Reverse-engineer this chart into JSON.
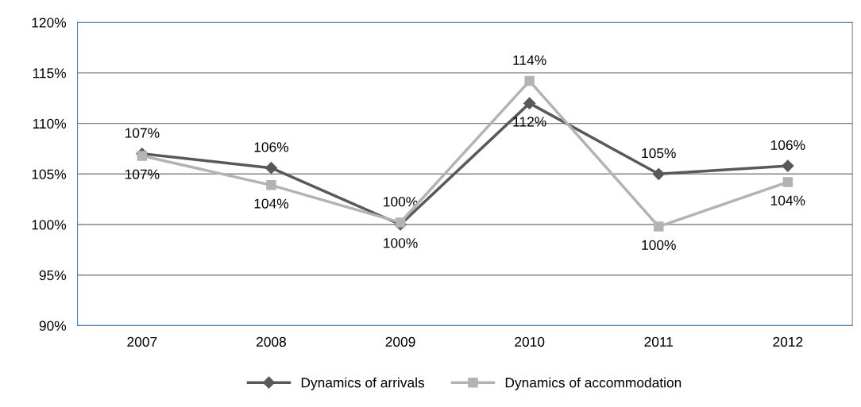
{
  "chart_data": {
    "type": "line",
    "categories": [
      "2007",
      "2008",
      "2009",
      "2010",
      "2011",
      "2012"
    ],
    "series": [
      {
        "name": "Dynamics of arrivals",
        "color": "#595959",
        "marker": "diamond",
        "values": [
          107.0,
          105.6,
          100.0,
          112.0,
          105.0,
          105.8
        ],
        "value_labels": [
          "107%",
          "106%",
          "100%",
          "112%",
          "105%",
          "106%"
        ]
      },
      {
        "name": "Dynamics of accommodation",
        "color": "#b3b3b3",
        "marker": "square",
        "values": [
          106.8,
          103.9,
          100.2,
          114.2,
          99.8,
          104.2
        ],
        "value_labels": [
          "107%",
          "104%",
          "100%",
          "114%",
          "100%",
          "104%"
        ]
      }
    ],
    "ylim": [
      90,
      120
    ],
    "yticks": [
      {
        "value": 90,
        "label": "90%"
      },
      {
        "value": 95,
        "label": "95%"
      },
      {
        "value": 100,
        "label": "100%"
      },
      {
        "value": 105,
        "label": "105%"
      },
      {
        "value": 110,
        "label": "110%"
      },
      {
        "value": 115,
        "label": "115%"
      },
      {
        "value": 120,
        "label": "120%"
      }
    ],
    "grid": "y",
    "legend": "bottom"
  }
}
